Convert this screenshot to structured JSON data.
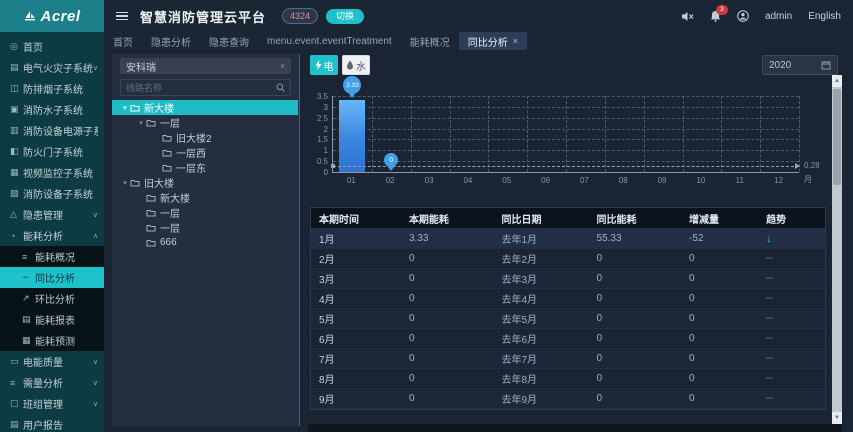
{
  "brand": {
    "name": "Acrel"
  },
  "header": {
    "title": "智慧消防管理云平台",
    "alarm_count": "4324",
    "switch_button": "切换",
    "notification_count": "3",
    "username": "admin",
    "language": "English"
  },
  "tabs": [
    {
      "label": "首页"
    },
    {
      "label": "隐患分析"
    },
    {
      "label": "隐患查询"
    },
    {
      "label": "menu.event.eventTreatment"
    },
    {
      "label": "能耗概况"
    },
    {
      "label": "同比分析",
      "active": true,
      "closable": true
    }
  ],
  "sidebar": {
    "items": [
      {
        "label": "首页",
        "icon": "home-icon"
      },
      {
        "label": "电气火灾子系统",
        "icon": "electric-fire-icon",
        "chevron": "down"
      },
      {
        "label": "防排烟子系统",
        "icon": "smoke-icon"
      },
      {
        "label": "消防水子系统",
        "icon": "fire-water-icon"
      },
      {
        "label": "消防设备电源子系统",
        "icon": "power-icon"
      },
      {
        "label": "防火门子系统",
        "icon": "fire-door-icon"
      },
      {
        "label": "视频监控子系统",
        "icon": "video-icon"
      },
      {
        "label": "消防设备子系统",
        "icon": "device-icon"
      },
      {
        "label": "隐患管理",
        "icon": "hazard-icon",
        "chevron": "down"
      },
      {
        "label": "能耗分析",
        "icon": "energy-icon",
        "chevron": "up",
        "expanded": true,
        "children": [
          {
            "label": "能耗概况",
            "icon": "overview-icon"
          },
          {
            "label": "同比分析",
            "icon": "yoy-icon",
            "active": true
          },
          {
            "label": "环比分析",
            "icon": "mom-icon"
          },
          {
            "label": "能耗报表",
            "icon": "report-icon"
          },
          {
            "label": "能耗预测",
            "icon": "forecast-icon"
          }
        ]
      },
      {
        "label": "电能质量",
        "icon": "quality-icon",
        "chevron": "down"
      },
      {
        "label": "需量分析",
        "icon": "demand-icon",
        "chevron": "down"
      },
      {
        "label": "班组管理",
        "icon": "team-icon",
        "chevron": "down"
      },
      {
        "label": "用户报告",
        "icon": "user-report-icon"
      }
    ]
  },
  "icons": {
    "home-icon": "◎",
    "electric-fire-icon": "▤",
    "smoke-icon": "◫",
    "fire-water-icon": "▣",
    "power-icon": "▥",
    "fire-door-icon": "◧",
    "video-icon": "▦",
    "device-icon": "▧",
    "hazard-icon": "△",
    "energy-icon": "◔",
    "overview-icon": "≡",
    "yoy-icon": "∼",
    "mom-icon": "↗",
    "report-icon": "▤",
    "forecast-icon": "▦",
    "quality-icon": "▭",
    "demand-icon": "≡",
    "team-icon": "▢",
    "user-report-icon": "▤"
  },
  "tree_panel": {
    "org_selected": "安科瑞",
    "search_placeholder": "线路名称",
    "nodes": [
      {
        "label": "新大楼",
        "level": 0,
        "caret": true,
        "selected": true
      },
      {
        "label": "一层",
        "level": 1,
        "caret": true
      },
      {
        "label": "旧大楼2",
        "level": 2
      },
      {
        "label": "一层西",
        "level": 2
      },
      {
        "label": "一层东",
        "level": 2
      },
      {
        "label": "旧大楼",
        "level": 0,
        "caret": true
      },
      {
        "label": "新大楼",
        "level": 1
      },
      {
        "label": "一层",
        "level": 1
      },
      {
        "label": "一层",
        "level": 1
      },
      {
        "label": "666",
        "level": 1
      }
    ]
  },
  "toolbar": {
    "electric_label": "电",
    "water_label": "水",
    "year": "2020"
  },
  "chart_data": {
    "type": "bar",
    "title": "",
    "categories": [
      "01",
      "02",
      "03",
      "04",
      "05",
      "06",
      "07",
      "08",
      "09",
      "10",
      "11",
      "12"
    ],
    "values": [
      3.33,
      0,
      0,
      0,
      0,
      0,
      0,
      0,
      0,
      0,
      0,
      0
    ],
    "xlabel": "月",
    "ylabel": "",
    "ylim": [
      0,
      3.5
    ],
    "yticks": [
      0,
      0.5,
      1,
      1.5,
      2,
      2.5,
      3,
      3.5
    ],
    "grid": true,
    "legend": [],
    "max_label": "3.33",
    "min_label": "0",
    "average_line": {
      "value": 0.28,
      "label": "0.28"
    }
  },
  "table": {
    "headers": [
      "本期时间",
      "本期能耗",
      "同比日期",
      "同比能耗",
      "增减量",
      "趋势"
    ],
    "rows": [
      [
        "1月",
        "3.33",
        "去年1月",
        "55.33",
        "-52",
        "↓"
      ],
      [
        "2月",
        "0",
        "去年2月",
        "0",
        "0",
        "--"
      ],
      [
        "3月",
        "0",
        "去年3月",
        "0",
        "0",
        "--"
      ],
      [
        "4月",
        "0",
        "去年4月",
        "0",
        "0",
        "--"
      ],
      [
        "5月",
        "0",
        "去年5月",
        "0",
        "0",
        "--"
      ],
      [
        "6月",
        "0",
        "去年6月",
        "0",
        "0",
        "--"
      ],
      [
        "7月",
        "0",
        "去年7月",
        "0",
        "0",
        "--"
      ],
      [
        "8月",
        "0",
        "去年8月",
        "0",
        "0",
        "--"
      ],
      [
        "9月",
        "0",
        "去年9月",
        "0",
        "0",
        "--"
      ]
    ]
  }
}
